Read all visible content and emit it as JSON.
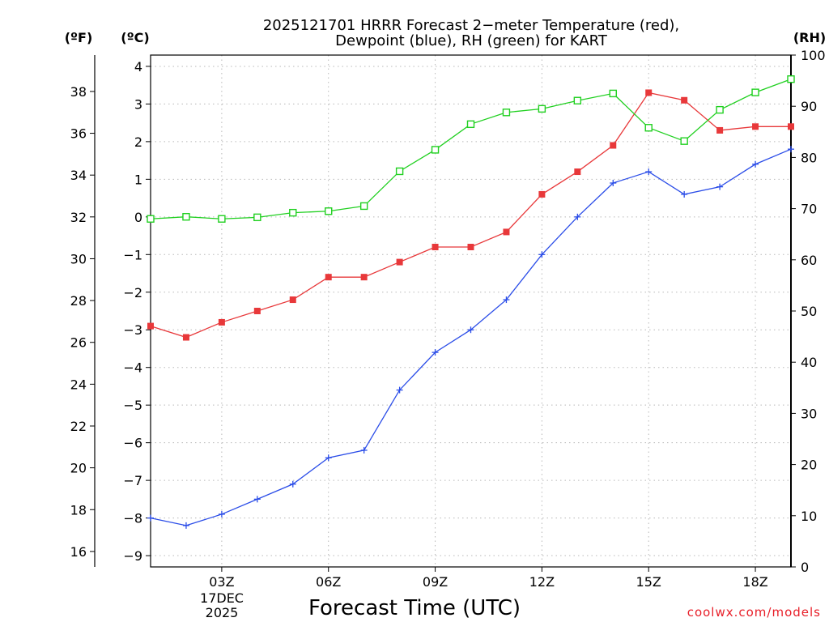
{
  "chart_data": {
    "type": "line",
    "title": [
      "2025121701 HRRR Forecast 2−meter Temperature (red),",
      "Dewpoint (blue), RH (green) for KART"
    ],
    "units": {
      "fahrenheit": "(ºF)",
      "celsius": "(ºC)",
      "rh": "(RH)"
    },
    "xlabel": "Forecast Time (UTC)",
    "x_hours_utc": [
      1,
      2,
      3,
      4,
      5,
      6,
      7,
      8,
      9,
      10,
      11,
      12,
      13,
      14,
      15,
      16,
      17,
      18,
      19
    ],
    "xlim": [
      1,
      19
    ],
    "x_ticks": [
      {
        "hour": 3,
        "label": "03Z"
      },
      {
        "hour": 6,
        "label": "06Z"
      },
      {
        "hour": 9,
        "label": "09Z"
      },
      {
        "hour": 12,
        "label": "12Z"
      },
      {
        "hour": 15,
        "label": "15Z"
      },
      {
        "hour": 18,
        "label": "18Z"
      }
    ],
    "date_label": [
      "17DEC",
      "2025"
    ],
    "y_celsius": {
      "range": [
        -9.3,
        4.3
      ],
      "ticks": [
        4,
        3,
        2,
        1,
        0,
        -1,
        -2,
        -3,
        -4,
        -5,
        -6,
        -7,
        -8,
        -9
      ],
      "tick_labels": [
        "4",
        "3",
        "2",
        "1",
        "0",
        "−1",
        "−2",
        "−3",
        "−4",
        "−5",
        "−6",
        "−7",
        "−8",
        "−9"
      ]
    },
    "y_fahrenheit": {
      "ticks": [
        38,
        36,
        34,
        32,
        30,
        28,
        26,
        24,
        22,
        20,
        18,
        16
      ],
      "tick_labels": [
        "38",
        "36",
        "34",
        "32",
        "30",
        "28",
        "26",
        "24",
        "22",
        "20",
        "18",
        "16"
      ]
    },
    "y_rh": {
      "range": [
        0,
        100
      ],
      "ticks": [
        100,
        90,
        80,
        70,
        60,
        50,
        40,
        30,
        20,
        10,
        0
      ],
      "tick_labels": [
        "100",
        "90",
        "80",
        "70",
        "60",
        "50",
        "40",
        "30",
        "20",
        "10",
        "0"
      ]
    },
    "grid": true,
    "series": [
      {
        "name": "Temperature",
        "axis": "celsius",
        "color": "#e8383a",
        "marker": "filled-square",
        "values": [
          -2.9,
          -3.2,
          -2.8,
          -2.5,
          -2.2,
          -1.6,
          -1.6,
          -1.2,
          -0.8,
          -0.8,
          -0.4,
          0.6,
          1.2,
          1.9,
          3.3,
          3.1,
          2.3,
          2.4,
          2.4
        ]
      },
      {
        "name": "Dewpoint",
        "axis": "celsius",
        "color": "#2b4de8",
        "marker": "plus",
        "values": [
          -8.0,
          -8.2,
          -7.9,
          -7.5,
          -7.1,
          -6.4,
          -6.2,
          -4.6,
          -3.6,
          -3.0,
          -2.2,
          -1.0,
          0.0,
          0.9,
          1.2,
          0.6,
          0.8,
          1.4,
          1.8
        ]
      },
      {
        "name": "Relative Humidity",
        "axis": "rh",
        "color": "#20d020",
        "marker": "open-square",
        "values": [
          68.0,
          68.4,
          68.0,
          68.3,
          69.2,
          69.5,
          70.5,
          77.3,
          81.5,
          86.5,
          88.8,
          89.5,
          91.1,
          92.5,
          85.8,
          83.2,
          89.3,
          92.7,
          95.3
        ]
      }
    ]
  },
  "credit": "coolwx.com/models"
}
